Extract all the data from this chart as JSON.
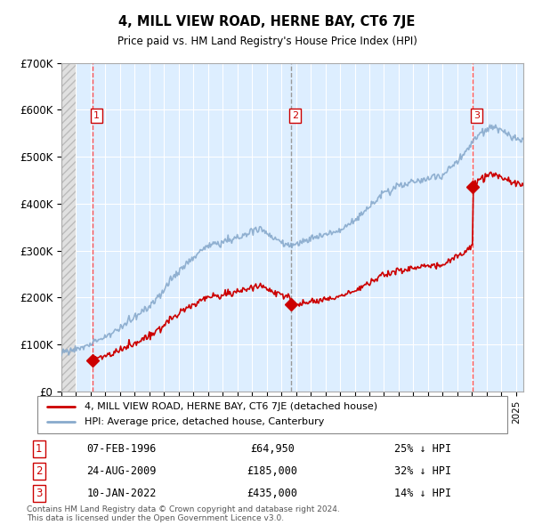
{
  "title": "4, MILL VIEW ROAD, HERNE BAY, CT6 7JE",
  "subtitle": "Price paid vs. HM Land Registry's House Price Index (HPI)",
  "ylim": [
    0,
    700000
  ],
  "yticks": [
    0,
    100000,
    200000,
    300000,
    400000,
    500000,
    600000,
    700000
  ],
  "ytick_labels": [
    "£0",
    "£100K",
    "£200K",
    "£300K",
    "£400K",
    "£500K",
    "£600K",
    "£700K"
  ],
  "plot_bg_color": "#ddeeff",
  "grid_color": "#ffffff",
  "sale_color": "#cc0000",
  "hpi_color": "#88aacc",
  "vline_colors": [
    "#ff5555",
    "#aaaaaa",
    "#ff5555"
  ],
  "purchases": [
    {
      "date_num": 1996.1,
      "price": 64950,
      "label": "1",
      "date_str": "07-FEB-1996",
      "pct": "25% ↓ HPI"
    },
    {
      "date_num": 2009.65,
      "price": 185000,
      "label": "2",
      "date_str": "24-AUG-2009",
      "pct": "32% ↓ HPI"
    },
    {
      "date_num": 2022.03,
      "price": 435000,
      "label": "3",
      "date_str": "10-JAN-2022",
      "pct": "14% ↓ HPI"
    }
  ],
  "legend_entries": [
    {
      "label": "4, MILL VIEW ROAD, HERNE BAY, CT6 7JE (detached house)",
      "color": "#cc0000",
      "lw": 2
    },
    {
      "label": "HPI: Average price, detached house, Canterbury",
      "color": "#88aacc",
      "lw": 2
    }
  ],
  "footer": "Contains HM Land Registry data © Crown copyright and database right 2024.\nThis data is licensed under the Open Government Licence v3.0.",
  "xmin": 1994,
  "xmax": 2025.5,
  "hatch_end": 1995.0
}
